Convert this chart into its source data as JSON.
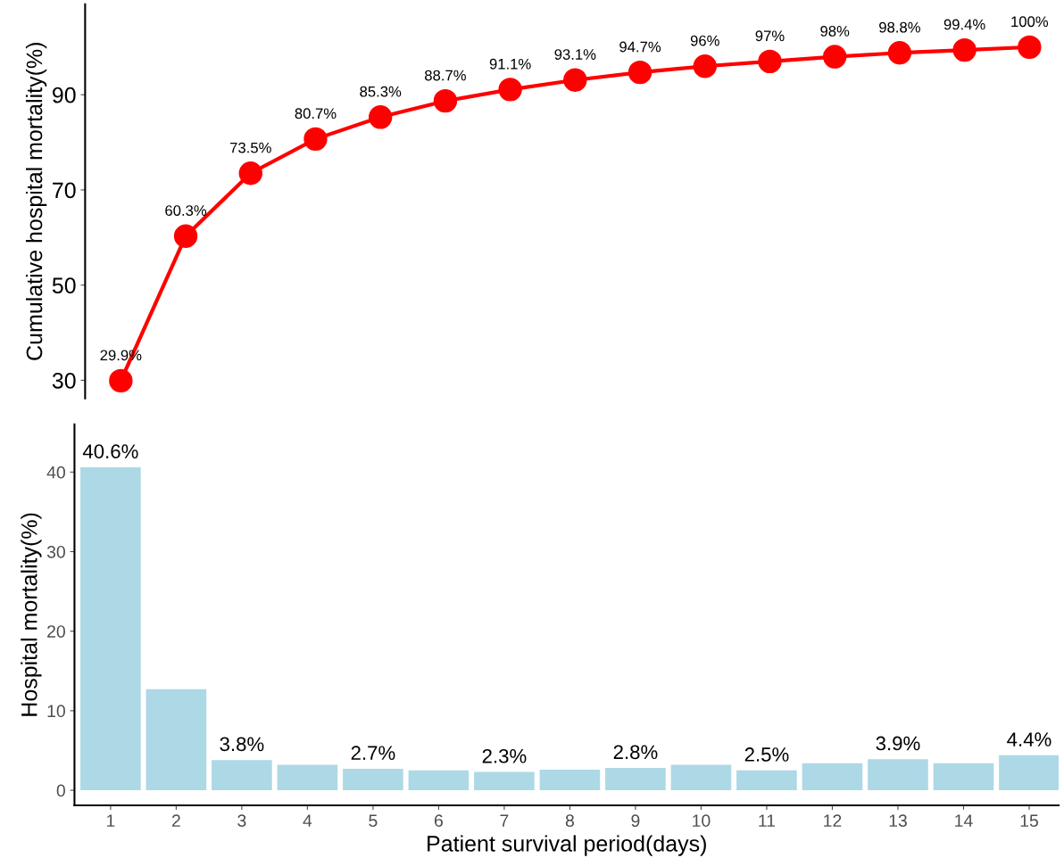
{
  "chart_data": [
    {
      "type": "line",
      "ylabel": "Cumulative hospital mortality(%)",
      "categories": [
        null,
        null,
        null,
        null,
        null,
        null,
        null,
        null,
        null,
        null,
        null,
        null,
        null,
        null,
        null
      ],
      "series": [
        {
          "color": "#ff0000",
          "values": [
            29.9,
            60.3,
            73.5,
            80.7,
            85.3,
            88.7,
            91.1,
            93.1,
            94.7,
            96,
            97,
            98,
            98.8,
            99.4,
            100
          ],
          "value_labels": [
            "29.9%",
            "60.3%",
            "73.5%",
            "80.7%",
            "85.3%",
            "88.7%",
            "91.1%",
            "93.1%",
            "94.7%",
            "96%",
            "97%",
            "98%",
            "98.8%",
            "99.4%",
            "100%"
          ]
        }
      ],
      "ylim": [
        26.2,
        109
      ],
      "yticks": [
        30,
        50,
        70,
        90
      ],
      "marker": "circle",
      "line_style": "solid",
      "grid": false,
      "legend": false,
      "tick_labels": "y"
    },
    {
      "type": "bar",
      "xlabel": "Patient survival period(days)",
      "ylabel": "Hospital mortality(%)",
      "categories": [
        "1",
        "2",
        "3",
        "4",
        "5",
        "6",
        "7",
        "8",
        "9",
        "10",
        "11",
        "12",
        "13",
        "14",
        "15"
      ],
      "values": [
        40.6,
        12.7,
        3.8,
        3.2,
        2.7,
        2.5,
        2.3,
        2.6,
        2.8,
        3.2,
        2.5,
        3.4,
        3.9,
        3.4,
        4.4
      ],
      "color": "#add8e6",
      "value_labels": [
        "40.6%",
        null,
        "3.8%",
        null,
        "2.7%",
        null,
        "2.3%",
        null,
        "2.8%",
        null,
        "2.5%",
        null,
        "3.9%",
        null,
        "4.4%"
      ],
      "ylim": [
        -1.9,
        46
      ],
      "yticks": [
        0,
        10,
        20,
        30,
        40
      ],
      "grid": false,
      "legend": false
    }
  ]
}
